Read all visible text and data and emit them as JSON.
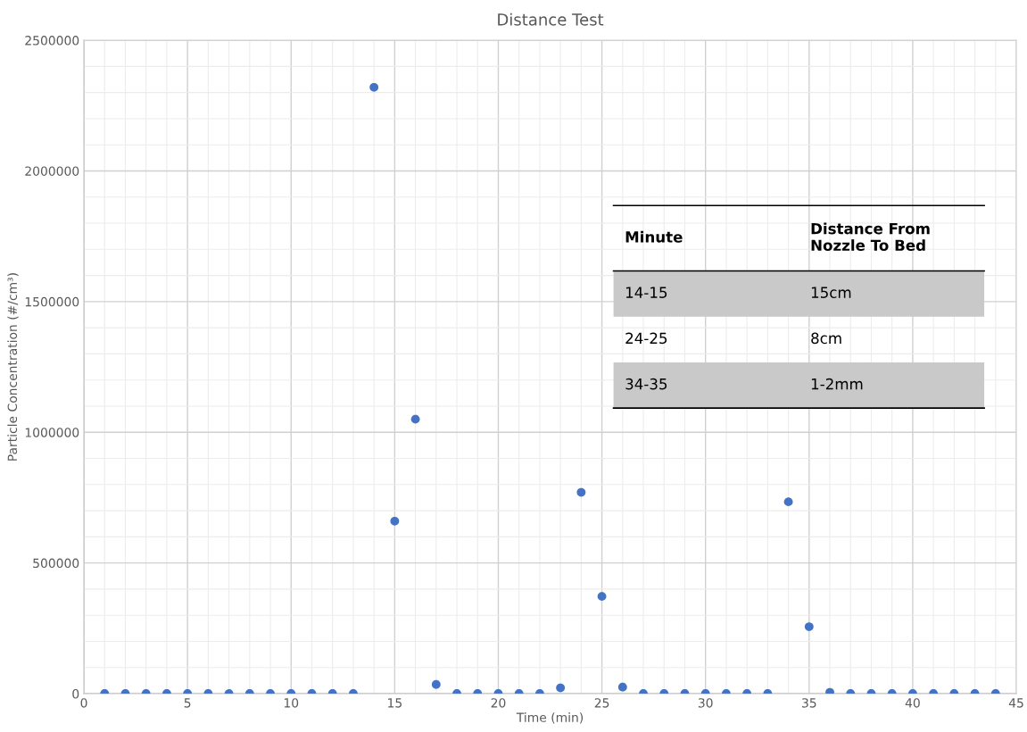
{
  "chart_data": {
    "type": "scatter",
    "title": "Distance Test",
    "xlabel": "Time (min)",
    "ylabel": "Particle Concentration (#/cm³)",
    "x": [
      1,
      2,
      3,
      4,
      5,
      6,
      7,
      8,
      9,
      10,
      11,
      12,
      13,
      14,
      15,
      16,
      17,
      18,
      19,
      20,
      21,
      22,
      23,
      24,
      25,
      26,
      27,
      28,
      29,
      30,
      31,
      32,
      33,
      34,
      35,
      36,
      37,
      38,
      39,
      40,
      41,
      42,
      43,
      44
    ],
    "series": [
      {
        "color": "#4472c4",
        "values": [
          0,
          0,
          0,
          0,
          0,
          0,
          0,
          0,
          0,
          0,
          0,
          0,
          0,
          2320000,
          660000,
          1050000,
          35000,
          0,
          0,
          0,
          0,
          0,
          22000,
          770000,
          372000,
          25000,
          0,
          0,
          0,
          0,
          0,
          0,
          0,
          734000,
          256000,
          5000,
          0,
          0,
          0,
          0,
          0,
          0,
          0,
          0
        ]
      }
    ],
    "xlim": [
      0,
      45
    ],
    "xticks": [
      0,
      5,
      10,
      15,
      20,
      25,
      30,
      35,
      40,
      45
    ],
    "ylim": [
      0,
      2500000
    ],
    "yticks": [
      0,
      500000,
      1000000,
      1500000,
      2000000,
      2500000
    ],
    "grid": true,
    "marker": "circle",
    "annotations": [
      "Minute",
      "Distance From\nNozzle To Bed",
      "14-15",
      "15cm",
      "24-25",
      "8cm",
      "34-35",
      "1-2mm"
    ]
  }
}
